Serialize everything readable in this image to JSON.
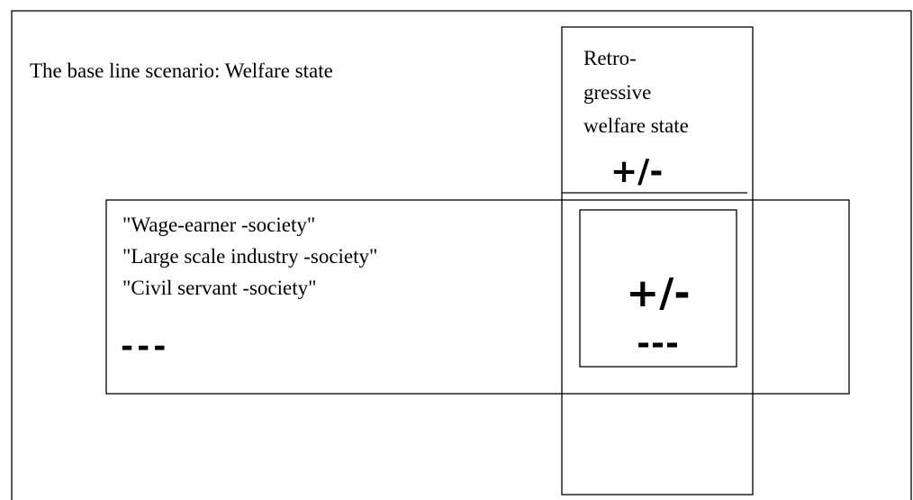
{
  "title": "The base line scenario: Welfare state",
  "column": {
    "lines": [
      "Retro-",
      "gressive",
      "welfare state"
    ],
    "sign": "+/-"
  },
  "scenarios": {
    "items": [
      "\"Wage-earner -society\"",
      "\"Large scale industry -society\"",
      "\"Civil servant -society\""
    ],
    "sign": "---"
  },
  "overlap": {
    "sign": "+/-",
    "dashes": "---"
  }
}
